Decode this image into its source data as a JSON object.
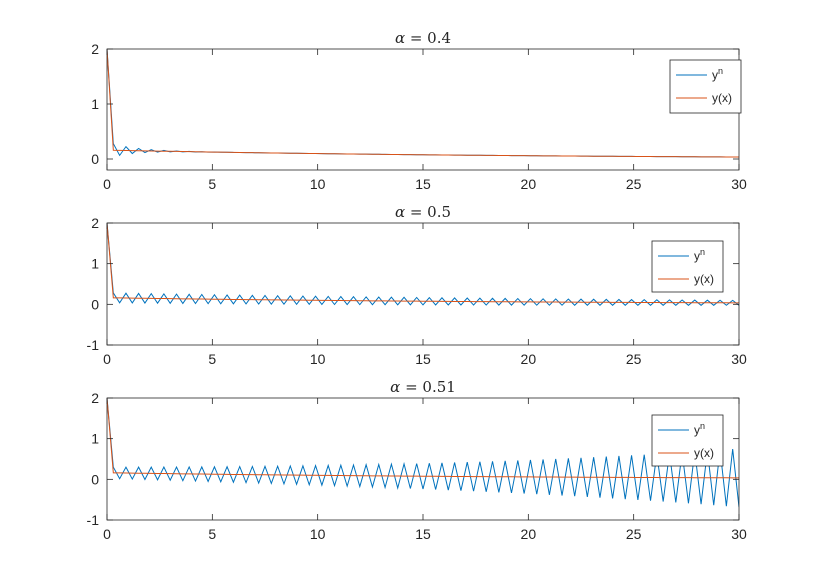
{
  "chart_data": [
    {
      "type": "line",
      "title_symbol": "α",
      "title_rest": " = 0.4",
      "xlim": [
        0,
        30
      ],
      "ylim": [
        -0.2,
        2
      ],
      "xticks": [
        0,
        5,
        10,
        15,
        20,
        25,
        30
      ],
      "yticks": [
        0,
        1,
        2
      ],
      "grid": false,
      "legend_position": "top-right",
      "series": [
        {
          "name": "y",
          "name_sup": "n",
          "color": "#0072BD",
          "model": {
            "y0": 2,
            "h": 0.3,
            "decay": 0.05,
            "base": 0.16,
            "amp_start": 0.12,
            "amp_end": 0.0,
            "amp_shape": "decay"
          }
        },
        {
          "name": "y(x)",
          "color": "#D95319",
          "model": {
            "y0": 2,
            "h": 0.3,
            "decay": 0.05,
            "base": 0.16,
            "amp_start": 0,
            "amp_end": 0,
            "amp_shape": "none"
          }
        }
      ]
    },
    {
      "type": "line",
      "title_symbol": "α",
      "title_rest": " = 0.5",
      "xlim": [
        0,
        30
      ],
      "ylim": [
        -1,
        2
      ],
      "xticks": [
        0,
        5,
        10,
        15,
        20,
        25,
        30
      ],
      "yticks": [
        -1,
        0,
        1,
        2
      ],
      "grid": false,
      "legend_position": "top-right",
      "series": [
        {
          "name": "y",
          "name_sup": "n",
          "color": "#0072BD",
          "model": {
            "y0": 2,
            "h": 0.3,
            "decay": 0.05,
            "base": 0.16,
            "amp_start": 0.12,
            "amp_end": 0.06,
            "amp_shape": "linear"
          }
        },
        {
          "name": "y(x)",
          "color": "#D95319",
          "model": {
            "y0": 2,
            "h": 0.3,
            "decay": 0.05,
            "base": 0.16,
            "amp_start": 0,
            "amp_end": 0,
            "amp_shape": "none"
          }
        }
      ]
    },
    {
      "type": "line",
      "title_symbol": "α",
      "title_rest": " = 0.51",
      "xlim": [
        0,
        30
      ],
      "ylim": [
        -1,
        2
      ],
      "xticks": [
        0,
        5,
        10,
        15,
        20,
        25,
        30
      ],
      "yticks": [
        -1,
        0,
        1,
        2
      ],
      "grid": false,
      "legend_position": "top-right",
      "series": [
        {
          "name": "y",
          "name_sup": "n",
          "color": "#0072BD",
          "model": {
            "y0": 2,
            "h": 0.3,
            "decay": 0.05,
            "base": 0.16,
            "amp_start": 0.14,
            "amp_end": 0.72,
            "amp_shape": "exp"
          }
        },
        {
          "name": "y(x)",
          "color": "#D95319",
          "model": {
            "y0": 2,
            "h": 0.3,
            "decay": 0.05,
            "base": 0.16,
            "amp_start": 0,
            "amp_end": 0,
            "amp_shape": "none"
          }
        }
      ]
    }
  ]
}
